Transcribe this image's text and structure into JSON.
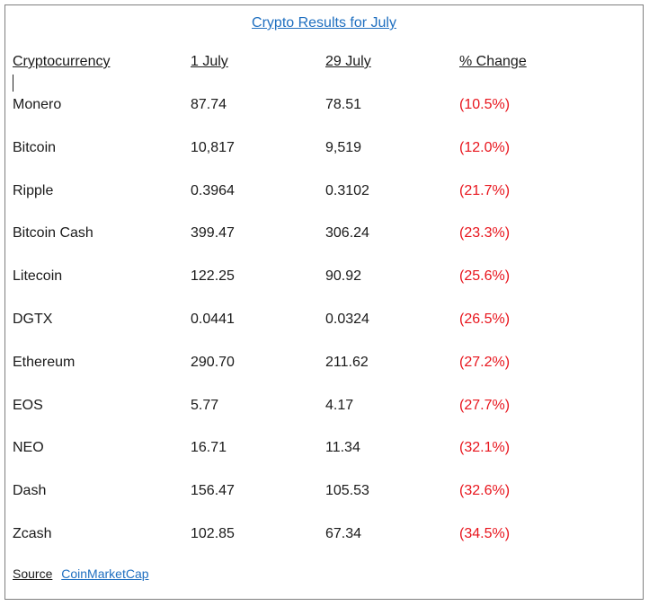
{
  "title": "Crypto Results for July",
  "headers": {
    "name": "Cryptocurrency",
    "start": "1 July",
    "end": "29 July",
    "change": "% Change"
  },
  "rows": [
    {
      "name": "Monero",
      "start": "87.74",
      "end": "78.51",
      "change": "(10.5%)"
    },
    {
      "name": "Bitcoin",
      "start": "10,817",
      "end": "9,519",
      "change": "(12.0%)"
    },
    {
      "name": "Ripple",
      "start": "0.3964",
      "end": "0.3102",
      "change": "(21.7%)"
    },
    {
      "name": "Bitcoin Cash",
      "start": "399.47",
      "end": "306.24",
      "change": "(23.3%)"
    },
    {
      "name": "Litecoin",
      "start": "122.25",
      "end": "90.92",
      "change": "(25.6%)"
    },
    {
      "name": "DGTX",
      "start": "0.0441",
      "end": "0.0324",
      "change": "(26.5%)"
    },
    {
      "name": "Ethereum",
      "start": "290.70",
      "end": "211.62",
      "change": "(27.2%)"
    },
    {
      "name": "EOS",
      "start": "5.77",
      "end": "4.17",
      "change": "(27.7%)"
    },
    {
      "name": "NEO",
      "start": "16.71",
      "end": "11.34",
      "change": "(32.1%)"
    },
    {
      "name": "Dash",
      "start": "156.47",
      "end": "105.53",
      "change": "(32.6%)"
    },
    {
      "name": "Zcash",
      "start": "102.85",
      "end": "67.34",
      "change": "(34.5%)"
    }
  ],
  "source": {
    "label": "Source",
    "link": "CoinMarketCap"
  },
  "colors": {
    "link": "#1f6fc0",
    "negative": "#e8141c"
  }
}
